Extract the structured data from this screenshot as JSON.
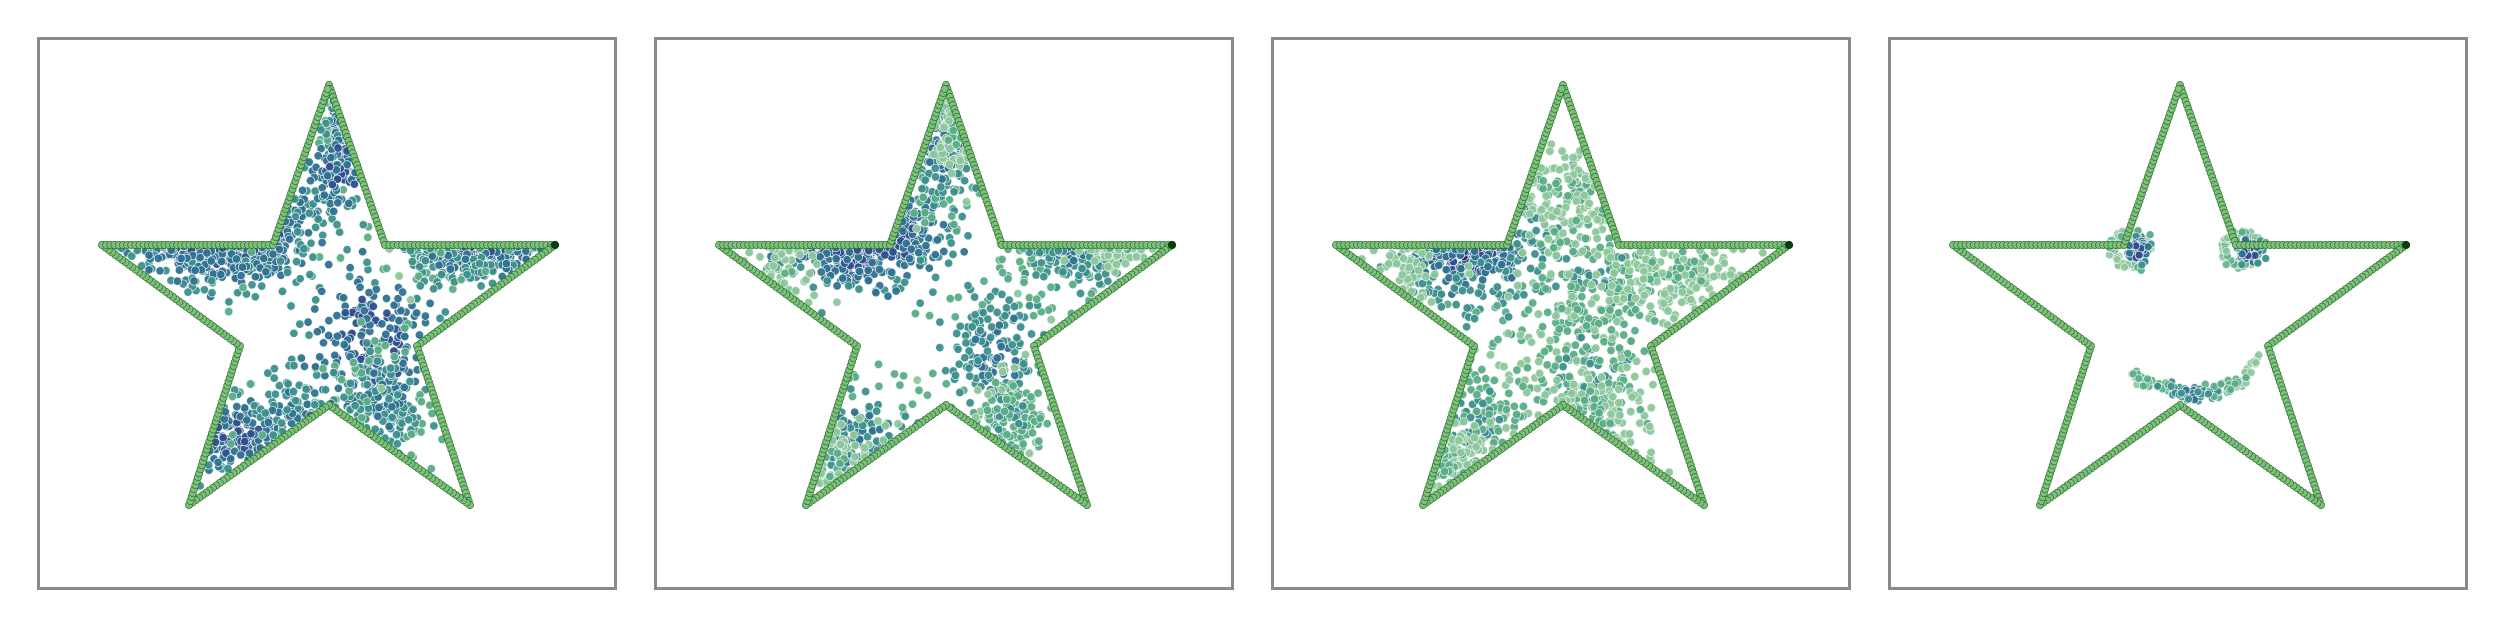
{
  "figure": {
    "panel_count": 4,
    "panels": [
      {
        "id": "panel-1",
        "state": "dense-diffuse"
      },
      {
        "id": "panel-2",
        "state": "spreading"
      },
      {
        "id": "panel-3",
        "state": "converging"
      },
      {
        "id": "panel-4",
        "state": "smiley-face"
      }
    ],
    "colors": {
      "outline_dark": "#2f6d2f",
      "outline_light": "#7cc27a",
      "outline_tip": "#0b3d14",
      "cmap": [
        "#3b1b6e",
        "#2f4e8f",
        "#2f7192",
        "#3b8f8d",
        "#58ad86",
        "#8cc79a"
      ],
      "frame": "#8a8a8a"
    }
  }
}
